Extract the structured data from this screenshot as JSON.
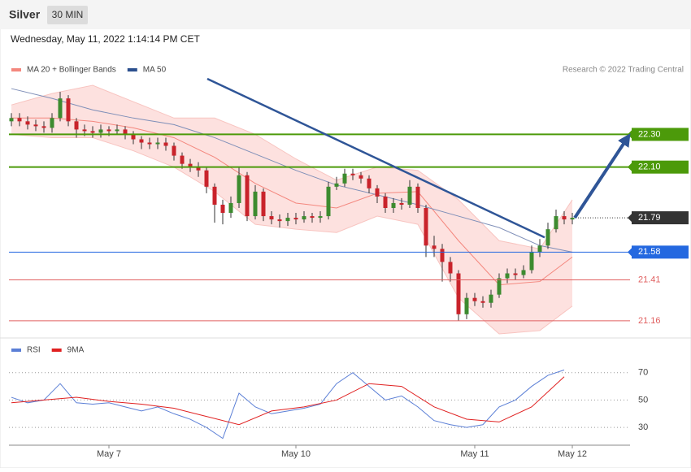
{
  "header": {
    "title": "Silver",
    "interval": "30 MIN",
    "timestamp": "Wednesday, May 11, 2022 1:14:14 PM CET",
    "credit": "Research © 2022 Trading Central"
  },
  "chart_data": [
    {
      "type": "candlestick",
      "categories": [
        null,
        null,
        null,
        null,
        null,
        null,
        null,
        null,
        null,
        null,
        null,
        null,
        "May 7",
        null,
        null,
        null,
        null,
        null,
        null,
        null,
        null,
        null,
        null,
        null,
        null,
        null,
        null,
        null,
        null,
        null,
        null,
        null,
        null,
        null,
        null,
        "May 10",
        null,
        null,
        null,
        null,
        null,
        null,
        null,
        null,
        null,
        null,
        null,
        null,
        null,
        null,
        null,
        null,
        null,
        null,
        null,
        null,
        null,
        "May 11",
        null,
        null,
        null,
        null,
        null,
        null,
        null,
        null,
        null,
        null,
        null,
        "May 12"
      ],
      "open": [
        22.38,
        22.4,
        22.38,
        22.36,
        22.35,
        22.34,
        22.4,
        22.52,
        22.38,
        22.33,
        22.32,
        22.31,
        22.33,
        22.32,
        22.33,
        22.3,
        22.27,
        22.25,
        22.24,
        22.25,
        22.23,
        22.17,
        22.12,
        22.1,
        22.08,
        21.98,
        21.87,
        21.82,
        21.88,
        22.05,
        21.8,
        21.95,
        21.8,
        21.78,
        21.77,
        21.79,
        21.78,
        21.8,
        21.79,
        21.8,
        21.98,
        22.0,
        22.06,
        22.05,
        22.03,
        21.97,
        21.92,
        21.85,
        21.88,
        21.87,
        21.98,
        21.85,
        21.62,
        21.6,
        21.52,
        21.45,
        21.2,
        21.3,
        21.28,
        21.27,
        21.32,
        21.42,
        21.45,
        21.44,
        21.47,
        21.58,
        21.62,
        21.72,
        21.8,
        21.78
      ],
      "high": [
        22.43,
        22.43,
        22.41,
        22.39,
        22.38,
        22.43,
        22.56,
        22.54,
        22.4,
        22.36,
        22.35,
        22.36,
        22.35,
        22.36,
        22.35,
        22.32,
        22.29,
        22.28,
        22.28,
        22.28,
        22.25,
        22.19,
        22.15,
        22.13,
        22.1,
        22.0,
        21.9,
        21.92,
        22.1,
        22.07,
        21.99,
        21.97,
        21.83,
        21.81,
        21.82,
        21.82,
        21.83,
        21.82,
        21.83,
        22.01,
        22.04,
        22.09,
        22.09,
        22.07,
        22.05,
        21.99,
        21.94,
        21.91,
        21.91,
        22.02,
        22.0,
        21.87,
        21.68,
        21.63,
        21.55,
        21.47,
        21.33,
        21.33,
        21.31,
        21.35,
        21.45,
        21.48,
        21.48,
        21.5,
        21.62,
        21.66,
        21.76,
        21.84,
        21.83,
        21.82
      ],
      "low": [
        22.35,
        22.35,
        22.33,
        22.32,
        22.31,
        22.31,
        22.38,
        22.35,
        22.28,
        22.29,
        22.28,
        22.28,
        22.29,
        22.3,
        22.27,
        22.24,
        22.21,
        22.21,
        22.21,
        22.2,
        22.14,
        22.09,
        22.07,
        22.04,
        21.94,
        21.76,
        21.75,
        21.79,
        21.85,
        21.77,
        21.78,
        21.77,
        21.75,
        21.73,
        21.74,
        21.75,
        21.76,
        21.76,
        21.76,
        21.78,
        21.96,
        21.98,
        22.02,
        22.0,
        21.94,
        21.88,
        21.82,
        21.82,
        21.84,
        21.85,
        21.82,
        21.55,
        21.55,
        21.4,
        21.4,
        21.16,
        21.17,
        21.25,
        21.24,
        21.24,
        21.3,
        21.39,
        21.41,
        21.42,
        21.45,
        21.55,
        21.6,
        21.7,
        21.75,
        21.75
      ],
      "close": [
        22.4,
        22.38,
        22.36,
        22.35,
        22.34,
        22.4,
        22.52,
        22.38,
        22.33,
        22.32,
        22.31,
        22.33,
        22.32,
        22.33,
        22.3,
        22.27,
        22.25,
        22.24,
        22.25,
        22.23,
        22.17,
        22.12,
        22.1,
        22.08,
        21.98,
        21.87,
        21.82,
        21.88,
        22.05,
        21.8,
        21.95,
        21.8,
        21.78,
        21.77,
        21.79,
        21.78,
        21.8,
        21.79,
        21.8,
        21.98,
        22.0,
        22.06,
        22.05,
        22.03,
        21.97,
        21.92,
        21.85,
        21.88,
        21.87,
        21.98,
        21.85,
        21.62,
        21.6,
        21.52,
        21.45,
        21.2,
        21.3,
        21.28,
        21.27,
        21.32,
        21.42,
        21.45,
        21.44,
        21.47,
        21.58,
        21.62,
        21.72,
        21.8,
        21.78,
        21.79
      ],
      "up_color": "#3d8b2f",
      "down_color": "#c9232b",
      "xlim": [
        -0.3,
        76.1
      ],
      "ylim": [
        21.06,
        22.64
      ],
      "legend": [
        {
          "name": "MA 20 + Bollinger Bands",
          "color": "#f4877e"
        },
        {
          "name": "MA 50",
          "color": "#2b4f8e"
        }
      ],
      "overlay_x": [
        0,
        5,
        10,
        15,
        20,
        25,
        30,
        35,
        40,
        45,
        50,
        55,
        60,
        65,
        69
      ],
      "ma20": [
        22.4,
        22.4,
        22.38,
        22.34,
        22.28,
        22.16,
        22.0,
        21.88,
        21.85,
        21.94,
        21.95,
        21.65,
        21.38,
        21.4,
        21.55
      ],
      "ma50": [
        22.58,
        22.52,
        22.45,
        22.4,
        22.36,
        22.28,
        22.18,
        22.08,
        21.99,
        21.93,
        21.87,
        21.8,
        21.73,
        21.62,
        21.58
      ],
      "band_upper": [
        22.48,
        22.55,
        22.6,
        22.5,
        22.4,
        22.4,
        22.3,
        22.15,
        22.02,
        22.1,
        22.08,
        21.9,
        21.65,
        21.6,
        21.9
      ],
      "band_lower": [
        22.3,
        22.28,
        22.28,
        22.2,
        22.1,
        21.95,
        21.75,
        21.72,
        21.7,
        21.8,
        21.75,
        21.3,
        21.08,
        21.1,
        21.25
      ],
      "band_color": "#fde1df",
      "ma50_color": "#7f8fb8",
      "levels": [
        {
          "value": 22.3,
          "label": "22.30",
          "color": "#4c9a0a",
          "boxed": true,
          "style": "solid"
        },
        {
          "value": 22.1,
          "label": "22.10",
          "color": "#4c9a0a",
          "boxed": true,
          "style": "solid"
        },
        {
          "value": 21.79,
          "label": "21.79",
          "color": "#333333",
          "boxed": true,
          "style": "dotted"
        },
        {
          "value": 21.58,
          "label": "21.58",
          "color": "#2468e0",
          "boxed": true,
          "style": "solid"
        },
        {
          "value": 21.41,
          "label": "21.41",
          "color": "#e06060",
          "boxed": false,
          "style": "solid"
        },
        {
          "value": 21.16,
          "label": "21.16",
          "color": "#e06060",
          "boxed": false,
          "style": "solid"
        }
      ],
      "trendline": {
        "x": [
          24.1,
          65.6
        ],
        "y": [
          22.64,
          21.67
        ],
        "color": "#2f5597"
      },
      "arrow": {
        "x": [
          69.3,
          75.8
        ],
        "y": [
          21.79,
          22.28
        ],
        "color": "#2f5597"
      }
    },
    {
      "type": "line",
      "xlim": [
        -0.3,
        76.1
      ],
      "ylim": [
        20,
        90
      ],
      "yticks": [
        70,
        50,
        30
      ],
      "grid": true,
      "series": [
        {
          "name": "RSI",
          "color": "#5b7fd6",
          "x": [
            0,
            2,
            4,
            6,
            8,
            10,
            12,
            14,
            16,
            18,
            20,
            22,
            24,
            26,
            28,
            30,
            32,
            34,
            36,
            38,
            40,
            42,
            44,
            46,
            48,
            50,
            52,
            54,
            56,
            58,
            60,
            62,
            64,
            66,
            68
          ],
          "values": [
            52,
            48,
            50,
            62,
            48,
            47,
            48,
            45,
            42,
            45,
            40,
            36,
            30,
            22,
            55,
            45,
            40,
            42,
            44,
            47,
            62,
            70,
            60,
            50,
            53,
            45,
            35,
            32,
            30,
            32,
            45,
            50,
            60,
            68,
            72
          ]
        },
        {
          "name": "9MA",
          "color": "#e02020",
          "x": [
            0,
            4,
            8,
            12,
            16,
            20,
            24,
            28,
            32,
            36,
            40,
            44,
            48,
            52,
            56,
            60,
            64,
            68
          ],
          "values": [
            48,
            50,
            52,
            49,
            47,
            44,
            38,
            32,
            42,
            45,
            50,
            62,
            60,
            45,
            36,
            34,
            45,
            67
          ]
        }
      ]
    }
  ]
}
